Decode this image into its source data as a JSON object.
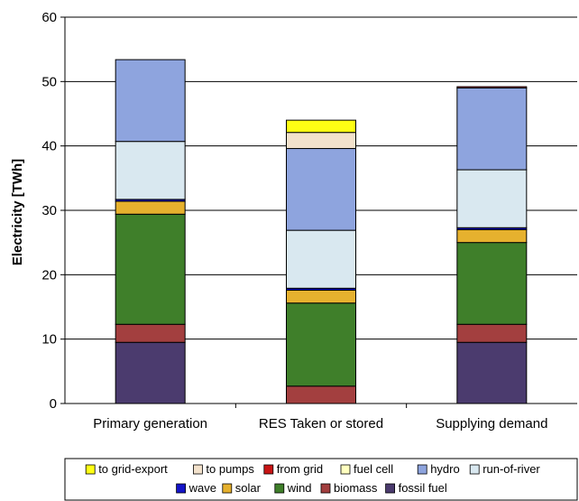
{
  "chart_data": {
    "type": "bar",
    "stacked": true,
    "title": "",
    "xlabel": "",
    "ylabel": "Electricity [TWh]",
    "ylim": [
      0,
      60
    ],
    "yticks": [
      0,
      10,
      20,
      30,
      40,
      50,
      60
    ],
    "grid": "horizontal",
    "legend_position": "bottom",
    "categories": [
      "Primary generation",
      "RES Taken or stored",
      "Supplying demand"
    ],
    "series": [
      {
        "name": "fossil fuel",
        "color": "#4b3b6e",
        "values": [
          9.5,
          0,
          9.5
        ]
      },
      {
        "name": "biomass",
        "color": "#a33f3f",
        "values": [
          2.8,
          2.7,
          2.8
        ]
      },
      {
        "name": "wind",
        "color": "#3f7f2a",
        "values": [
          17.1,
          12.9,
          12.7
        ]
      },
      {
        "name": "solar",
        "color": "#e6b12e",
        "values": [
          2.0,
          2.0,
          2.0
        ]
      },
      {
        "name": "wave",
        "color": "#1414c8",
        "values": [
          0.3,
          0.3,
          0.3
        ]
      },
      {
        "name": "run-of-river",
        "color": "#d9e8f0",
        "values": [
          9.0,
          9.0,
          9.0
        ]
      },
      {
        "name": "hydro",
        "color": "#8ea4de",
        "values": [
          12.7,
          12.7,
          12.7
        ]
      },
      {
        "name": "fuel cell",
        "color": "#ffffc0",
        "values": [
          0,
          0,
          0
        ]
      },
      {
        "name": "from grid",
        "color": "#c81414",
        "values": [
          0,
          0,
          0.2
        ]
      },
      {
        "name": "to pumps",
        "color": "#f3e2cc",
        "values": [
          0,
          2.5,
          0
        ]
      },
      {
        "name": "to grid-export",
        "color": "#ffff14",
        "values": [
          0,
          1.9,
          0
        ]
      }
    ],
    "legend_rows": [
      [
        "to grid-export",
        "to pumps",
        "from grid",
        "fuel cell",
        "hydro",
        "run-of-river"
      ],
      [
        "wave",
        "solar",
        "wind",
        "biomass",
        "fossil fuel"
      ]
    ]
  }
}
